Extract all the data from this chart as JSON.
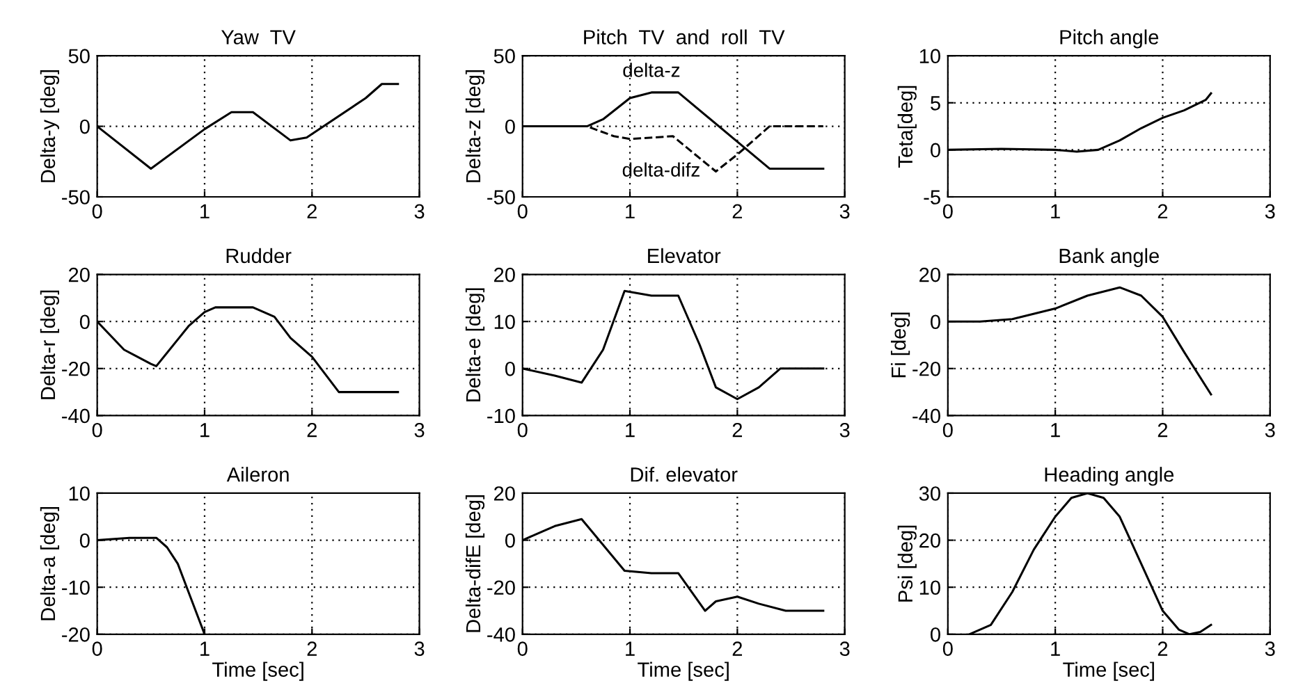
{
  "chart_data": [
    {
      "type": "line",
      "title": "Yaw  TV",
      "ylabel": "Delta-y [deg]",
      "xlim": [
        0,
        3
      ],
      "xticks": [
        0,
        1,
        2,
        3
      ],
      "ylim": [
        -50,
        50
      ],
      "yticks": [
        -50,
        0,
        50
      ],
      "grid": true,
      "line_style": "solid",
      "series": [
        {
          "color": "#000000",
          "x": [
            0,
            0.5,
            1.0,
            1.25,
            1.45,
            1.8,
            1.95,
            2.5,
            2.65,
            2.8
          ],
          "values": [
            0,
            -30,
            -2,
            10,
            10,
            -10,
            -8,
            20,
            30,
            30
          ]
        }
      ]
    },
    {
      "type": "line",
      "title": "Pitch  TV  and  roll  TV",
      "ylabel": "Delta-z [deg]",
      "xlim": [
        0,
        3
      ],
      "xticks": [
        0,
        1,
        2,
        3
      ],
      "ylim": [
        -50,
        50
      ],
      "yticks": [
        -50,
        0,
        50
      ],
      "grid": true,
      "series": [
        {
          "name": "delta-z",
          "color": "#000000",
          "line_style": "solid",
          "x": [
            0,
            0.6,
            0.75,
            1.0,
            1.2,
            1.45,
            2.3,
            2.8
          ],
          "values": [
            0,
            0,
            5,
            20,
            24,
            24,
            -30,
            -30
          ]
        },
        {
          "name": "delta-difz",
          "color": "#000000",
          "line_style": "dashed",
          "x": [
            0,
            0.6,
            0.85,
            1.0,
            1.4,
            1.8,
            2.0,
            2.3,
            2.5,
            2.8
          ],
          "values": [
            0,
            0,
            -7,
            -9,
            -7,
            -32,
            -20,
            0,
            0,
            0
          ]
        }
      ]
    },
    {
      "type": "line",
      "title": "Pitch angle",
      "ylabel": "Teta[deg]",
      "xlim": [
        0,
        3
      ],
      "xticks": [
        0,
        1,
        2,
        3
      ],
      "ylim": [
        -5,
        10
      ],
      "yticks": [
        -5,
        0,
        5,
        10
      ],
      "grid": true,
      "line_style": "solid",
      "series": [
        {
          "color": "#000000",
          "x": [
            0,
            0.5,
            1.0,
            1.2,
            1.4,
            1.6,
            1.8,
            2.0,
            2.2,
            2.4,
            2.45
          ],
          "values": [
            0,
            0.1,
            0,
            -0.2,
            0,
            1,
            2.3,
            3.4,
            4.2,
            5.3,
            6
          ]
        }
      ]
    },
    {
      "type": "line",
      "title": "Rudder",
      "ylabel": "Delta-r [deg]",
      "xlim": [
        0,
        3
      ],
      "xticks": [
        0,
        1,
        2,
        3
      ],
      "ylim": [
        -40,
        20
      ],
      "yticks": [
        -40,
        -20,
        0,
        20
      ],
      "grid": true,
      "line_style": "solid",
      "series": [
        {
          "color": "#000000",
          "x": [
            0,
            0.25,
            0.5,
            0.55,
            0.85,
            1.0,
            1.1,
            1.45,
            1.65,
            1.8,
            2.0,
            2.25,
            2.8
          ],
          "values": [
            0,
            -12,
            -18,
            -19,
            -2,
            4,
            6,
            6,
            2,
            -7,
            -15,
            -30,
            -30
          ]
        }
      ]
    },
    {
      "type": "line",
      "title": "Elevator",
      "ylabel": "Delta-e [deg]",
      "xlim": [
        0,
        3
      ],
      "xticks": [
        0,
        1,
        2,
        3
      ],
      "ylim": [
        -10,
        20
      ],
      "yticks": [
        -10,
        0,
        10,
        20
      ],
      "grid": true,
      "line_style": "solid",
      "series": [
        {
          "color": "#000000",
          "x": [
            0,
            0.3,
            0.55,
            0.75,
            0.95,
            1.2,
            1.45,
            1.65,
            1.8,
            2.0,
            2.2,
            2.4,
            2.8
          ],
          "values": [
            0,
            -1.5,
            -3,
            4,
            16.5,
            15.5,
            15.5,
            5,
            -4,
            -6.5,
            -4,
            0,
            0
          ]
        }
      ]
    },
    {
      "type": "line",
      "title": "Bank angle",
      "ylabel": "Fi [deg]",
      "xlim": [
        0,
        3
      ],
      "xticks": [
        0,
        1,
        2,
        3
      ],
      "ylim": [
        -40,
        20
      ],
      "yticks": [
        -40,
        -20,
        0,
        20
      ],
      "grid": true,
      "line_style": "solid",
      "series": [
        {
          "color": "#000000",
          "x": [
            0,
            0.3,
            0.6,
            1.0,
            1.3,
            1.6,
            1.8,
            2.0,
            2.2,
            2.45
          ],
          "values": [
            0,
            0,
            1,
            5.5,
            11,
            14.5,
            11,
            2,
            -13,
            -31
          ]
        }
      ]
    },
    {
      "type": "line",
      "title": "Aileron",
      "ylabel": "Delta-a [deg]",
      "xlabel": "Time [sec]",
      "xlim": [
        0,
        3
      ],
      "xticks": [
        0,
        1,
        2,
        3
      ],
      "ylim": [
        -20,
        10
      ],
      "yticks": [
        -20,
        -10,
        0,
        10
      ],
      "grid": true,
      "line_style": "solid",
      "series": [
        {
          "color": "#000000",
          "x": [
            0,
            0.3,
            0.55,
            0.65,
            0.75,
            0.85,
            1.0
          ],
          "values": [
            0,
            0.5,
            0.5,
            -1.5,
            -5,
            -11,
            -20
          ]
        }
      ]
    },
    {
      "type": "line",
      "title": "Dif. elevator",
      "ylabel": "Delta-difE [deg]",
      "xlabel": "Time [sec]",
      "xlim": [
        0,
        3
      ],
      "xticks": [
        0,
        1,
        2,
        3
      ],
      "ylim": [
        -40,
        20
      ],
      "yticks": [
        -40,
        -20,
        0,
        20
      ],
      "grid": true,
      "line_style": "solid",
      "series": [
        {
          "color": "#000000",
          "x": [
            0,
            0.3,
            0.55,
            0.95,
            1.2,
            1.45,
            1.7,
            1.8,
            2.0,
            2.2,
            2.45,
            2.8
          ],
          "values": [
            0,
            6,
            9,
            -13,
            -14,
            -14,
            -30,
            -26,
            -24,
            -27,
            -30,
            -30
          ]
        }
      ]
    },
    {
      "type": "line",
      "title": "Heading angle",
      "ylabel": "Psi [deg]",
      "xlabel": "Time [sec]",
      "xlim": [
        0,
        3
      ],
      "xticks": [
        0,
        1,
        2,
        3
      ],
      "ylim": [
        0,
        30
      ],
      "yticks": [
        0,
        10,
        20,
        30
      ],
      "grid": true,
      "line_style": "solid",
      "series": [
        {
          "color": "#000000",
          "x": [
            0.2,
            0.4,
            0.6,
            0.8,
            1.0,
            1.15,
            1.3,
            1.45,
            1.6,
            1.8,
            2.0,
            2.15,
            2.25,
            2.35,
            2.45
          ],
          "values": [
            0,
            2,
            9,
            18,
            25,
            29,
            30,
            29,
            25,
            15,
            5,
            1,
            0,
            0.5,
            2
          ]
        }
      ]
    }
  ]
}
